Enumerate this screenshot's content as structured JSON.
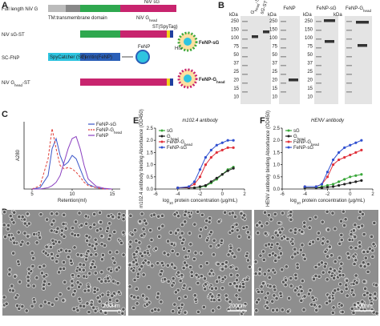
{
  "panel_a": {
    "label": "A",
    "rows": [
      "Full length NiV G",
      "NiV sG-ST",
      "SC-FNP",
      {
        "main": "NiV G",
        "sub": "head",
        "rest": "-ST"
      }
    ],
    "sg": "NiV sG",
    "ghead": {
      "main": "NiV G",
      "sub": "head"
    },
    "tm": "TM:transmembrane domain",
    "st": "ST(SpyTag)",
    "his": "His",
    "sc": "SpyCatcher (SC)",
    "ferritin": "Ferritin(FeNP)",
    "fenp": "FeNP",
    "products": [
      {
        "main": "FeNP-sG"
      },
      {
        "main": "FeNP-G",
        "sub": "head"
      }
    ]
  },
  "panel_b": {
    "label": "B",
    "gels": [
      {
        "unit": "kDa",
        "markers": [
          250,
          150,
          100,
          75,
          50,
          37,
          25,
          20,
          15,
          10
        ],
        "lanes": [
          {
            "main": "G",
            "sub": "head",
            "rest": "-ST"
          },
          {
            "main": "sG-ST"
          }
        ]
      },
      {
        "title": "FeNP",
        "unit": "kDa",
        "markers": [
          250,
          150,
          100,
          75,
          50,
          37,
          25,
          20,
          15,
          10
        ]
      },
      {
        "title": {
          "main": "FeNP-sG"
        },
        "unit": "kDa",
        "markers": [
          250,
          150,
          100,
          75,
          50,
          37,
          25,
          20,
          15,
          10
        ]
      },
      {
        "title": {
          "main": "FeNP-G",
          "sub": "head"
        },
        "unit": "kDa"
      }
    ]
  },
  "panel_d": {
    "label": "D",
    "scale_bars": [
      "200nm",
      "200nm",
      "200nm"
    ]
  },
  "chart_data": [
    {
      "type": "line",
      "label": "C",
      "xlabel": "Retention(ml)",
      "ylabel": "A280",
      "legend": "upper right",
      "x": [
        5,
        6,
        7,
        7.5,
        8,
        8.5,
        9,
        9.5,
        10,
        10.5,
        11,
        11.5,
        12,
        13,
        14,
        15
      ],
      "xlim": [
        4,
        16
      ],
      "xticks": [
        5,
        10,
        15
      ],
      "ylim": [
        0,
        1
      ],
      "series": [
        {
          "name": "FeNP-sG",
          "color": "#3a55c8",
          "values": [
            0,
            0.02,
            0.2,
            0.6,
            0.75,
            0.5,
            0.35,
            0.4,
            0.5,
            0.45,
            0.3,
            0.15,
            0.07,
            0.02,
            0,
            0
          ]
        },
        {
          "name": "FeNP-G",
          "name_sub": "head",
          "color": "#e0403a",
          "dash": true,
          "values": [
            0,
            0.05,
            0.45,
            0.9,
            0.6,
            0.35,
            0.3,
            0.32,
            0.3,
            0.25,
            0.18,
            0.1,
            0.05,
            0.02,
            0,
            0
          ]
        },
        {
          "name": "FeNP",
          "color": "#8a3fc0",
          "values": [
            0,
            0,
            0.02,
            0.05,
            0.1,
            0.2,
            0.4,
            0.6,
            0.75,
            0.78,
            0.6,
            0.35,
            0.15,
            0.04,
            0.01,
            0
          ]
        }
      ]
    },
    {
      "type": "line",
      "label": "E",
      "title": "m102.4 antibody",
      "ylabel": "m102.4 antibody binding Absorbance (OD450)",
      "xlabel": {
        "main": "log",
        "sub": "10",
        "rest": " protein concentration (μg/mL)"
      },
      "legend": "upper left",
      "markers": true,
      "x": [
        -4,
        -3,
        -2.5,
        -2,
        -1.5,
        -1,
        -0.5,
        0,
        0.5,
        1
      ],
      "xlim": [
        -6,
        2
      ],
      "xticks": [
        -6,
        -4,
        -2,
        0,
        2
      ],
      "ylim": [
        0,
        2.5
      ],
      "yticks": [
        {
          "value": 0,
          "label": "0.0"
        },
        0.5,
        {
          "value": 1,
          "label": "1.0"
        },
        1.5,
        {
          "value": 2,
          "label": "2.0"
        },
        2.5
      ],
      "series": [
        {
          "name": "sG",
          "color": "#3aa83a",
          "values": [
            0.05,
            0.05,
            0.05,
            0.08,
            0.12,
            0.25,
            0.4,
            0.6,
            0.8,
            0.9
          ]
        },
        {
          "name": "G",
          "name_sub": "head",
          "color": "#222222",
          "values": [
            0.05,
            0.05,
            0.05,
            0.1,
            0.15,
            0.3,
            0.45,
            0.6,
            0.75,
            0.85
          ]
        },
        {
          "name": "FeNP-G",
          "name_sub": "head",
          "color": "#e0303a",
          "values": [
            0.05,
            0.08,
            0.2,
            0.5,
            1.0,
            1.3,
            1.5,
            1.6,
            1.7,
            1.7
          ]
        },
        {
          "name": "FeNP-sG",
          "color": "#3050d0",
          "values": [
            0.05,
            0.1,
            0.3,
            0.8,
            1.3,
            1.6,
            1.8,
            1.9,
            2.0,
            2.0
          ]
        }
      ]
    },
    {
      "type": "line",
      "label": "F",
      "title": "HENV antibody",
      "ylabel": "HENV antibody binding Absorbance (OD450)",
      "xlabel": {
        "main": "log",
        "sub": "10",
        "rest": " protein concentration (μg/mL)"
      },
      "legend": "upper left",
      "markers": true,
      "x": [
        -4,
        -3,
        -2.5,
        -2,
        -1.5,
        -1,
        -0.5,
        0,
        0.5,
        1
      ],
      "xlim": [
        -6,
        2
      ],
      "xticks": [
        -6,
        -4,
        -2,
        0,
        2
      ],
      "ylim": [
        0,
        2.5
      ],
      "yticks": [
        {
          "value": 0,
          "label": "0.0"
        },
        0.5,
        {
          "value": 1,
          "label": "1.0"
        },
        1.5,
        {
          "value": 2,
          "label": "2.0"
        },
        2.5
      ],
      "series": [
        {
          "name": "sG",
          "color": "#3aa83a",
          "values": [
            0.05,
            0.05,
            0.1,
            0.15,
            0.2,
            0.3,
            0.4,
            0.5,
            0.55,
            0.6
          ]
        },
        {
          "name": "G",
          "name_sub": "head",
          "color": "#222222",
          "values": [
            0.05,
            0.05,
            0.05,
            0.08,
            0.1,
            0.15,
            0.2,
            0.25,
            0.3,
            0.35
          ]
        },
        {
          "name": "FeNP-G",
          "name_sub": "head",
          "color": "#e0303a",
          "values": [
            0.1,
            0.1,
            0.2,
            0.5,
            1.0,
            1.2,
            1.3,
            1.4,
            1.5,
            1.6
          ]
        },
        {
          "name": "FeNP-sG",
          "color": "#3050d0",
          "values": [
            0.1,
            0.1,
            0.2,
            0.7,
            1.2,
            1.5,
            1.7,
            1.8,
            1.9,
            2.0
          ]
        }
      ]
    }
  ]
}
